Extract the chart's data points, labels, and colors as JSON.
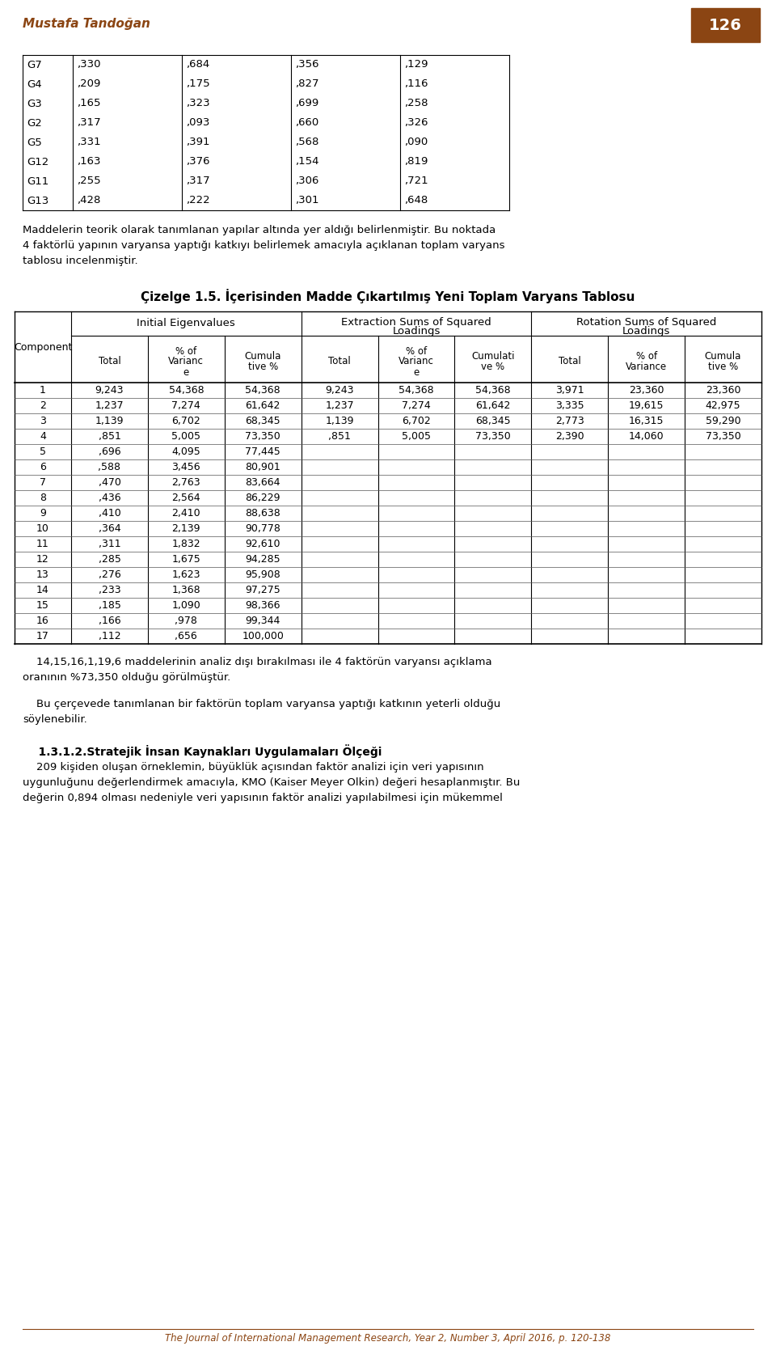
{
  "header_author": "Mustafa Tandoğan",
  "header_page": "126",
  "header_page_bg": "#8B4513",
  "top_table_data": [
    [
      "G7",
      ",330",
      ",684",
      ",356",
      ",129"
    ],
    [
      "G4",
      ",209",
      ",175",
      ",827",
      ",116"
    ],
    [
      "G3",
      ",165",
      ",323",
      ",699",
      ",258"
    ],
    [
      "G2",
      ",317",
      ",093",
      ",660",
      ",326"
    ],
    [
      "G5",
      ",331",
      ",391",
      ",568",
      ",090"
    ],
    [
      "G12",
      ",163",
      ",376",
      ",154",
      ",819"
    ],
    [
      "G11",
      ",255",
      ",317",
      ",306",
      ",721"
    ],
    [
      "G13",
      ",428",
      ",222",
      ",301",
      ",648"
    ]
  ],
  "para1_line1": "Maddelerin teorik olarak tanımlanan yapılar altında yer aldığı belirlenmiştir. Bu noktada",
  "para1_line2": "4 faktörlü yapının varyansa yaptığı katkıyı belirlemek amacıyla açıklanan toplam varyans",
  "para1_line3": "tablosu incelenmiştir.",
  "table_title": "Çizelge 1.5. İçerisinden Madde Çıkartılmış Yeni Toplam Varyans Tablosu",
  "sub_col_headers": [
    "Total",
    "% of\nVarianc\ne",
    "Cumula\ntive %",
    "Total",
    "% of\nVarianc\ne",
    "Cumulati\nve %",
    "Total",
    "% of\nVariance",
    "Cumula\ntive %"
  ],
  "main_table_data": [
    [
      "1",
      "9,243",
      "54,368",
      "54,368",
      "9,243",
      "54,368",
      "54,368",
      "3,971",
      "23,360",
      "23,360"
    ],
    [
      "2",
      "1,237",
      "7,274",
      "61,642",
      "1,237",
      "7,274",
      "61,642",
      "3,335",
      "19,615",
      "42,975"
    ],
    [
      "3",
      "1,139",
      "6,702",
      "68,345",
      "1,139",
      "6,702",
      "68,345",
      "2,773",
      "16,315",
      "59,290"
    ],
    [
      "4",
      ",851",
      "5,005",
      "73,350",
      ",851",
      "5,005",
      "73,350",
      "2,390",
      "14,060",
      "73,350"
    ],
    [
      "5",
      ",696",
      "4,095",
      "77,445",
      "",
      "",
      "",
      "",
      "",
      ""
    ],
    [
      "6",
      ",588",
      "3,456",
      "80,901",
      "",
      "",
      "",
      "",
      "",
      ""
    ],
    [
      "7",
      ",470",
      "2,763",
      "83,664",
      "",
      "",
      "",
      "",
      "",
      ""
    ],
    [
      "8",
      ",436",
      "2,564",
      "86,229",
      "",
      "",
      "",
      "",
      "",
      ""
    ],
    [
      "9",
      ",410",
      "2,410",
      "88,638",
      "",
      "",
      "",
      "",
      "",
      ""
    ],
    [
      "10",
      ",364",
      "2,139",
      "90,778",
      "",
      "",
      "",
      "",
      "",
      ""
    ],
    [
      "11",
      ",311",
      "1,832",
      "92,610",
      "",
      "",
      "",
      "",
      "",
      ""
    ],
    [
      "12",
      ",285",
      "1,675",
      "94,285",
      "",
      "",
      "",
      "",
      "",
      ""
    ],
    [
      "13",
      ",276",
      "1,623",
      "95,908",
      "",
      "",
      "",
      "",
      "",
      ""
    ],
    [
      "14",
      ",233",
      "1,368",
      "97,275",
      "",
      "",
      "",
      "",
      "",
      ""
    ],
    [
      "15",
      ",185",
      "1,090",
      "98,366",
      "",
      "",
      "",
      "",
      "",
      ""
    ],
    [
      "16",
      ",166",
      ",978",
      "99,344",
      "",
      "",
      "",
      "",
      "",
      ""
    ],
    [
      "17",
      ",112",
      ",656",
      "100,000",
      "",
      "",
      "",
      "",
      "",
      ""
    ]
  ],
  "para2_line1": "    14,15,16,1,19,6 maddelerinin analiz dışı bırakılması ile 4 faktörün varyansı açıklama",
  "para2_line2": "oranının %73,350 olduğu görülmüştür.",
  "para3_line1": "    Bu çerçevede tanımlanan bir faktörün toplam varyansa yaptığı katkının yeterli olduğu",
  "para3_line2": "söylenebilir.",
  "section_title": "    1.3.1.2.Stratejik İnsan Kaynakları Uygulamaları Ölçeği",
  "para4_line1": "    209 kişiden oluşan örneklemin, büyüklük açısından faktör analizi için veri yapısının",
  "para4_line2": "uygunluğunu değerlendirmek amacıyla, KMO (Kaiser Meyer Olkin) değeri hesaplanmıştır. Bu",
  "para4_line3": "değerin 0,894 olması nedeniyle veri yapısının faktör analizi yapılabilmesi için mükemmel",
  "footer": "The Journal of International Management Research, Year 2, Number 3, April 2016, p. 120-138",
  "bg_color": "#ffffff",
  "header_color": "#8B4513"
}
